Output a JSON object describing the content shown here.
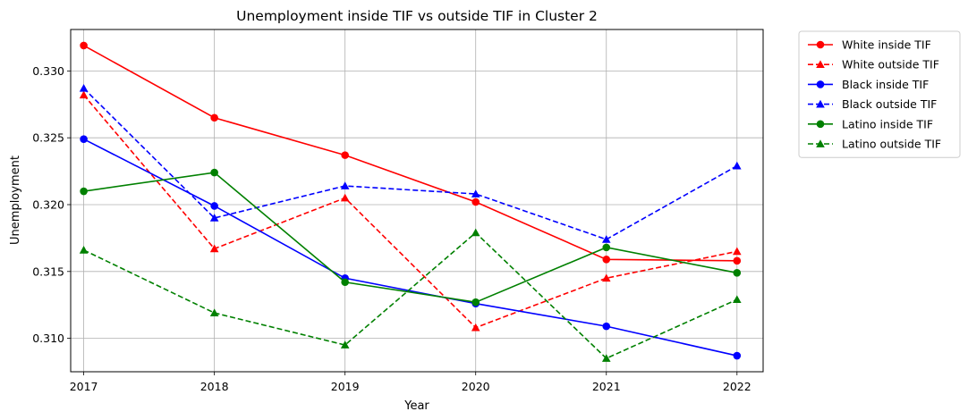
{
  "chart_data": {
    "type": "line",
    "title": "Unemployment inside TIF vs outside TIF in Cluster 2",
    "xlabel": "Year",
    "ylabel": "Unemployment",
    "x": [
      2017,
      2018,
      2019,
      2020,
      2021,
      2022
    ],
    "xlim": [
      2016.9,
      2022.2
    ],
    "ylim": [
      0.3075,
      0.3331
    ],
    "yticks": [
      "0.310",
      "0.315",
      "0.320",
      "0.325",
      "0.330"
    ],
    "xticks": [
      "2017",
      "2018",
      "2019",
      "2020",
      "2021",
      "2022"
    ],
    "grid": true,
    "legend_position": "outside-top-right",
    "series": [
      {
        "name": "White inside TIF",
        "color": "#ff0000",
        "style": "solid",
        "marker": "circle",
        "values": [
          0.3319,
          0.3265,
          0.3237,
          0.3202,
          0.3159,
          0.3158
        ]
      },
      {
        "name": "White outside TIF",
        "color": "#ff0000",
        "style": "dashed",
        "marker": "triangle",
        "values": [
          0.3282,
          0.3167,
          0.3205,
          0.3108,
          0.3145,
          0.3165
        ]
      },
      {
        "name": "Black inside TIF",
        "color": "#0000ff",
        "style": "solid",
        "marker": "circle",
        "values": [
          0.3249,
          0.3199,
          0.3145,
          0.3126,
          0.3109,
          0.3087
        ]
      },
      {
        "name": "Black outside TIF",
        "color": "#0000ff",
        "style": "dashed",
        "marker": "triangle",
        "values": [
          0.3287,
          0.319,
          0.3214,
          0.3208,
          0.3174,
          0.3229
        ]
      },
      {
        "name": "Latino inside TIF",
        "color": "#008000",
        "style": "solid",
        "marker": "circle",
        "values": [
          0.321,
          0.3224,
          0.3142,
          0.3127,
          0.3168,
          0.3149
        ]
      },
      {
        "name": "Latino outside TIF",
        "color": "#008000",
        "style": "dashed",
        "marker": "triangle",
        "values": [
          0.3166,
          0.3119,
          0.3095,
          0.3179,
          0.3085,
          0.3129
        ]
      }
    ]
  }
}
